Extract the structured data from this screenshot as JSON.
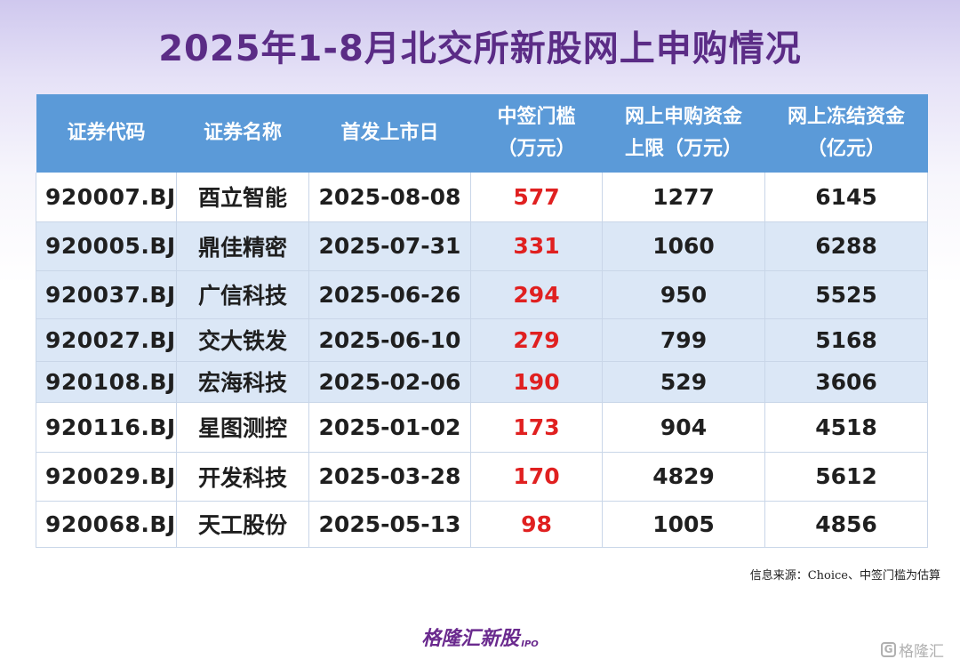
{
  "title": "2025年1-8月北交所新股网上申购情况",
  "table": {
    "headers": [
      {
        "line1": "证券代码",
        "line2": ""
      },
      {
        "line1": "证券名称",
        "line2": ""
      },
      {
        "line1": "首发上市日",
        "line2": ""
      },
      {
        "line1": "中签门槛",
        "line2": "（万元）"
      },
      {
        "line1": "网上申购资金",
        "line2": "上限（万元）"
      },
      {
        "line1": "网上冻结资金",
        "line2": "（亿元）"
      }
    ],
    "rows": [
      {
        "code": "920007.BJ",
        "name": "酉立智能",
        "date": "2025-08-08",
        "threshold": "577",
        "limit": "1277",
        "frozen": "6145"
      },
      {
        "code": "920005.BJ",
        "name": "鼎佳精密",
        "date": "2025-07-31",
        "threshold": "331",
        "limit": "1060",
        "frozen": "6288"
      },
      {
        "code": "920037.BJ",
        "name": "广信科技",
        "date": "2025-06-26",
        "threshold": "294",
        "limit": "950",
        "frozen": "5525"
      },
      {
        "code": "920027.BJ",
        "name": "交大铁发",
        "date": "2025-06-10",
        "threshold": "279",
        "limit": "799",
        "frozen": "5168"
      },
      {
        "code": "920108.BJ",
        "name": "宏海科技",
        "date": "2025-02-06",
        "threshold": "190",
        "limit": "529",
        "frozen": "3606"
      },
      {
        "code": "920116.BJ",
        "name": "星图测控",
        "date": "2025-01-02",
        "threshold": "173",
        "limit": "904",
        "frozen": "4518"
      },
      {
        "code": "920029.BJ",
        "name": "开发科技",
        "date": "2025-03-28",
        "threshold": "170",
        "limit": "4829",
        "frozen": "5612"
      },
      {
        "code": "920068.BJ",
        "name": "天工股份",
        "date": "2025-05-13",
        "threshold": "98",
        "limit": "1005",
        "frozen": "4856"
      }
    ]
  },
  "watermark": {
    "text": "格隆汇新股",
    "sub": "IPO"
  },
  "source_note": "信息来源：Choice、中签门槛为估算",
  "brand": {
    "text": "格隆汇新股",
    "sub": "IPO"
  },
  "corner_logo": {
    "icon": "g-icon",
    "text": "格隆汇"
  },
  "colors": {
    "title": "#5b2c86",
    "header_bg": "#5b9ad8",
    "shaded_row": "#dbe7f6",
    "threshold_red": "#e02020",
    "brand": "#6a2a8e"
  }
}
